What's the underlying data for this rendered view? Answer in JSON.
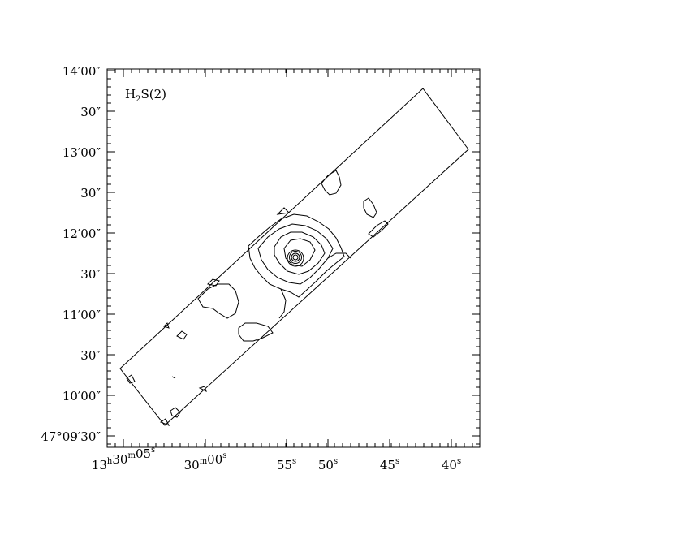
{
  "chart_data": {
    "type": "contour",
    "label": {
      "main": "H",
      "sub": "2",
      "rest": "S(2)"
    },
    "y_ticks": [
      {
        "d": "14",
        "m": "00",
        "major": true
      },
      {
        "s": "30",
        "major": false
      },
      {
        "d": "13",
        "m": "00",
        "major": true
      },
      {
        "s": "30",
        "major": false
      },
      {
        "d": "12",
        "m": "00",
        "major": true
      },
      {
        "s": "30",
        "major": false
      },
      {
        "d": "11",
        "m": "00",
        "major": true
      },
      {
        "s": "30",
        "major": false
      },
      {
        "d": "10",
        "m": "00",
        "major": true
      },
      {
        "deg": "47",
        "d": "09",
        "m": "30",
        "major": true
      }
    ],
    "x_ticks": [
      {
        "h": "13",
        "m": "30",
        "s": "05"
      },
      {
        "m": "30",
        "s": "00"
      },
      {
        "s": "55"
      },
      {
        "s": "50"
      },
      {
        "s": "45"
      },
      {
        "s": "40"
      }
    ],
    "units": {
      "arcmin": "′",
      "arcsec": "″",
      "deg": "°",
      "h": "h",
      "m": "m",
      "s": "s"
    },
    "colors": {
      "line": "#000000",
      "background": "#ffffff"
    }
  }
}
